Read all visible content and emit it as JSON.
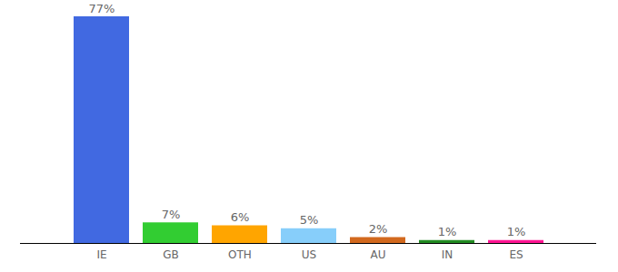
{
  "chart_data": {
    "type": "bar",
    "categories": [
      "IE",
      "GB",
      "OTH",
      "US",
      "AU",
      "IN",
      "ES"
    ],
    "values": [
      77,
      7,
      6,
      5,
      2,
      1,
      1
    ],
    "value_labels": [
      "77%",
      "7%",
      "6%",
      "5%",
      "2%",
      "1%",
      "1%"
    ],
    "colors": [
      "#4169e1",
      "#32cd32",
      "#ffa500",
      "#87cefa",
      "#d2691e",
      "#228b22",
      "#ff1493"
    ],
    "ylim": [
      0,
      77
    ],
    "data_labels": true,
    "tick_labels": "x",
    "grid": false
  }
}
